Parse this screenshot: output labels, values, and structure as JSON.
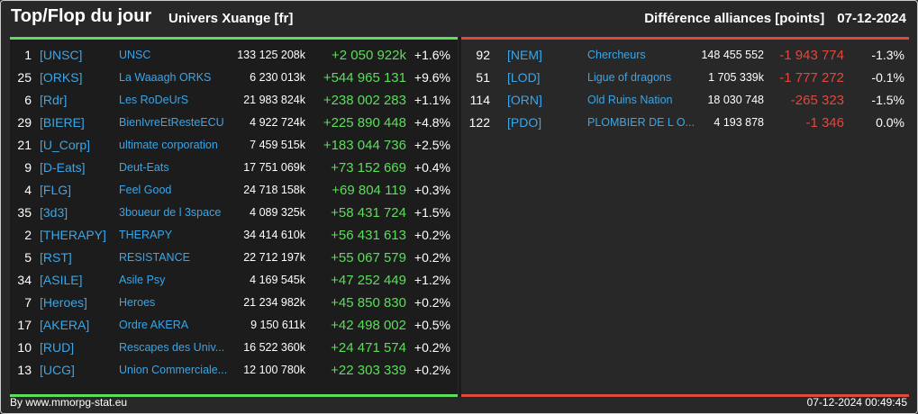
{
  "header": {
    "title": "Top/Flop du jour",
    "universe": "Univers Xuange [fr]",
    "metric": "Différence alliances [points]",
    "date": "07-12-2024"
  },
  "colors": {
    "positive": "#5cdd5c",
    "negative": "#e0483e",
    "link": "#3aa6e8"
  },
  "top": [
    {
      "rank": "1",
      "tag": "[UNSC]",
      "name": "UNSC",
      "points": "133 125 208k",
      "diff": "+2 050 922k",
      "pct": "+1.6%"
    },
    {
      "rank": "25",
      "tag": "[ORKS]",
      "name": "La Waaagh ORKS",
      "points": "6 230 013k",
      "diff": "+544 965 131",
      "pct": "+9.6%"
    },
    {
      "rank": "6",
      "tag": "[Rdr]",
      "name": "Les RoDeUrS",
      "points": "21 983 824k",
      "diff": "+238 002 283",
      "pct": "+1.1%"
    },
    {
      "rank": "29",
      "tag": "[BIERE]",
      "name": "BienIvreEtResteECU",
      "points": "4 922 724k",
      "diff": "+225 890 448",
      "pct": "+4.8%"
    },
    {
      "rank": "21",
      "tag": "[U_Corp]",
      "name": "ultimate corporation",
      "points": "7 459 515k",
      "diff": "+183 044 736",
      "pct": "+2.5%"
    },
    {
      "rank": "9",
      "tag": "[D-Eats]",
      "name": "Deut-Eats",
      "points": "17 751 069k",
      "diff": "+73 152 669",
      "pct": "+0.4%"
    },
    {
      "rank": "4",
      "tag": "[FLG]",
      "name": "Feel Good",
      "points": "24 718 158k",
      "diff": "+69 804 119",
      "pct": "+0.3%"
    },
    {
      "rank": "35",
      "tag": "[3d3]",
      "name": "3boueur de l 3space",
      "points": "4 089 325k",
      "diff": "+58 431 724",
      "pct": "+1.5%"
    },
    {
      "rank": "2",
      "tag": "[THERAPY]",
      "name": "THERAPY",
      "points": "34 414 610k",
      "diff": "+56 431 613",
      "pct": "+0.2%"
    },
    {
      "rank": "5",
      "tag": "[RST]",
      "name": "RESISTANCE",
      "points": "22 712 197k",
      "diff": "+55 067 579",
      "pct": "+0.2%"
    },
    {
      "rank": "34",
      "tag": "[ASILE]",
      "name": "Asile Psy",
      "points": "4 169 545k",
      "diff": "+47 252 449",
      "pct": "+1.2%"
    },
    {
      "rank": "7",
      "tag": "[Heroes]",
      "name": "Heroes",
      "points": "21 234 982k",
      "diff": "+45 850 830",
      "pct": "+0.2%"
    },
    {
      "rank": "17",
      "tag": "[AKERA]",
      "name": "Ordre AKERA",
      "points": "9 150 611k",
      "diff": "+42 498 002",
      "pct": "+0.5%"
    },
    {
      "rank": "10",
      "tag": "[RUD]",
      "name": "Rescapes des Univ...",
      "points": "16 522 360k",
      "diff": "+24 471 574",
      "pct": "+0.2%"
    },
    {
      "rank": "13",
      "tag": "[UCG]",
      "name": "Union Commerciale...",
      "points": "12 100 780k",
      "diff": "+22 303 339",
      "pct": "+0.2%"
    }
  ],
  "flop": [
    {
      "rank": "92",
      "tag": "[NEM]",
      "name": "Chercheurs",
      "points": "148 455 552",
      "diff": "-1 943 774",
      "pct": "-1.3%"
    },
    {
      "rank": "51",
      "tag": "[LOD]",
      "name": "Ligue of dragons",
      "points": "1 705 339k",
      "diff": "-1 777 272",
      "pct": "-0.1%"
    },
    {
      "rank": "114",
      "tag": "[ORN]",
      "name": "Old Ruins Nation",
      "points": "18 030 748",
      "diff": "-265 323",
      "pct": "-1.5%"
    },
    {
      "rank": "122",
      "tag": "[PDO]",
      "name": "PLOMBIER DE L O...",
      "points": "4 193 878",
      "diff": "-1 346",
      "pct": "0.0%"
    }
  ],
  "footer": {
    "source": "By www.mmorpg-stat.eu",
    "timestamp": "07-12-2024 00:49:45"
  }
}
